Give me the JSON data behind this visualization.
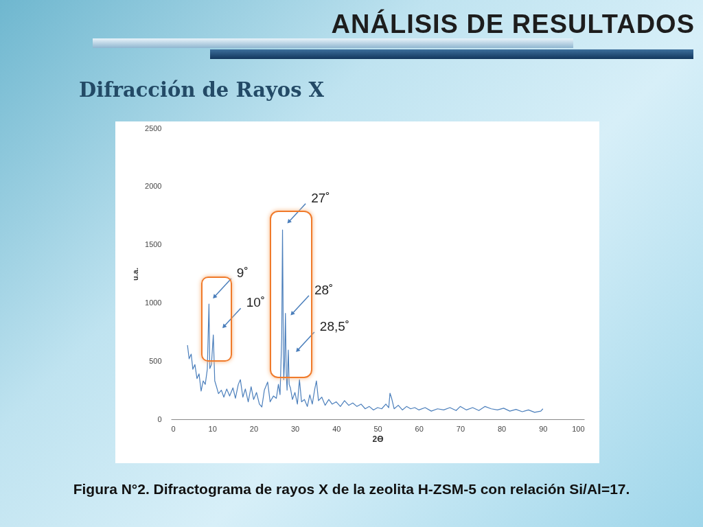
{
  "chart_data": {
    "type": "line",
    "title": "ANÁLISIS DE RESULTADOS",
    "subtitle": "Difracción de Rayos X",
    "xlabel": "2ϴ",
    "ylabel": "u.a.",
    "x": [
      4.0,
      4.4,
      4.9,
      5.3,
      5.8,
      6.3,
      6.8,
      7.3,
      7.8,
      8.3,
      8.8,
      9.2,
      9.4,
      9.8,
      10.25,
      10.6,
      11.0,
      11.5,
      12.2,
      12.8,
      13.5,
      14.2,
      15.0,
      15.6,
      16.3,
      16.8,
      17.4,
      18.0,
      18.7,
      19.4,
      20.0,
      20.7,
      21.4,
      22.0,
      22.6,
      23.4,
      24.0,
      24.8,
      25.5,
      26.0,
      26.4,
      26.8,
      27.0,
      27.2,
      27.3,
      27.5,
      27.7,
      27.9,
      28.1,
      28.4,
      28.6,
      28.9,
      29.4,
      30.0,
      30.6,
      31.1,
      31.6,
      32.3,
      33.0,
      33.6,
      34.2,
      34.8,
      35.2,
      35.7,
      36.5,
      37.3,
      38.2,
      39.0,
      40.0,
      41.0,
      42.0,
      43.0,
      44.0,
      45.0,
      46.0,
      47.0,
      48.0,
      49.0,
      50.0,
      51.0,
      52.0,
      52.7,
      53.0,
      53.4,
      54.0,
      55.0,
      56.0,
      57.0,
      58.0,
      59.0,
      60.0,
      61.5,
      63.0,
      64.5,
      66.0,
      67.5,
      69.0,
      70.0,
      71.5,
      73.0,
      74.5,
      76.0,
      77.5,
      79.0,
      80.5,
      82.0,
      83.5,
      85.0,
      86.5,
      88.0,
      89.5,
      90.0
    ],
    "series": [
      {
        "color": "#4a7ebb",
        "values": [
          637,
          520,
          560,
          430,
          470,
          350,
          390,
          242,
          330,
          300,
          430,
          990,
          436,
          470,
          725,
          330,
          283,
          220,
          250,
          190,
          260,
          200,
          270,
          180,
          300,
          340,
          190,
          260,
          150,
          280,
          170,
          230,
          130,
          106,
          250,
          320,
          150,
          200,
          180,
          300,
          212,
          700,
          1627,
          600,
          340,
          500,
          910,
          400,
          250,
          595,
          300,
          270,
          170,
          230,
          130,
          340,
          150,
          170,
          110,
          210,
          130,
          260,
          330,
          160,
          190,
          120,
          170,
          130,
          150,
          110,
          160,
          120,
          140,
          110,
          130,
          90,
          110,
          80,
          100,
          90,
          130,
          100,
          224,
          180,
          90,
          120,
          80,
          110,
          90,
          100,
          80,
          100,
          70,
          90,
          80,
          100,
          75,
          110,
          80,
          100,
          75,
          110,
          90,
          80,
          95,
          70,
          85,
          65,
          80,
          60,
          70,
          90
        ]
      }
    ],
    "xlim": [
      0,
      100
    ],
    "xticks": [
      0,
      10,
      20,
      30,
      40,
      50,
      60,
      70,
      80,
      90,
      100
    ],
    "ylim": [
      0,
      2500
    ],
    "yticks": [
      0,
      500,
      1000,
      1500,
      2000,
      2500
    ],
    "grid": false,
    "marker": "none",
    "line_style": "solid",
    "annotations": [
      {
        "text": "9˚",
        "x": 10.6,
        "y": 1055
      },
      {
        "text": "10˚",
        "x": 12.9,
        "y": 800
      },
      {
        "text": "27˚",
        "x": 28.6,
        "y": 1700
      },
      {
        "text": "28˚",
        "x": 29.4,
        "y": 910
      },
      {
        "text": "28,5˚",
        "x": 30.7,
        "y": 595
      },
      "Figura N°2. Difractograma de rayos X de la zeolita H-ZSM-5 con relación Si/Al=17."
    ]
  }
}
